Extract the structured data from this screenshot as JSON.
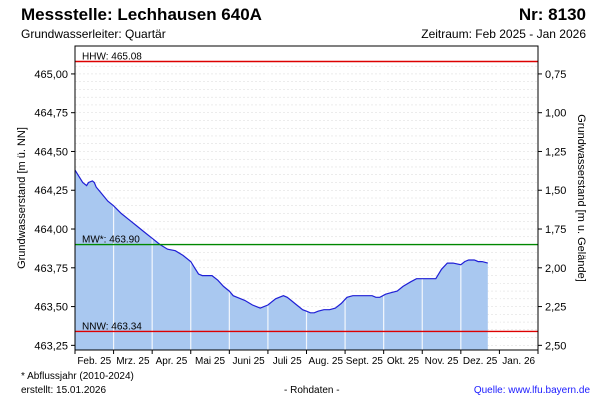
{
  "header": {
    "title": "Messstelle: Lechhausen 640A",
    "number": "Nr: 8130",
    "aquifer": "Grundwasserleiter: Quartär",
    "period": "Zeitraum: Feb 2025 - Jan 2026"
  },
  "footer": {
    "note": "* Abflussjahr (2010-2024)",
    "created": "erstellt:  15.01.2026",
    "raw": "- Rohdaten -",
    "source": "Quelle:  www.lfu.bayern.de"
  },
  "colors": {
    "fill": "#a9c8f0",
    "line": "#1f1fd6",
    "hhw": "#dd0000",
    "nnw": "#dd0000",
    "mw": "#008800",
    "grid": "#d8d8d8"
  },
  "chart_data": {
    "type": "area",
    "ylabel": "Grundwasserstand [m ü. NN]",
    "ylabel_right": "Grundwasserstand [m u. Gelände]",
    "ylim": [
      463.22,
      465.18
    ],
    "y_ticks": [
      465.0,
      464.75,
      464.5,
      464.25,
      464.0,
      463.75,
      463.5,
      463.25
    ],
    "y_tick_labels": [
      "465,00",
      "464,75",
      "464,50",
      "464,25",
      "464,00",
      "463,75",
      "463,50",
      "463,25"
    ],
    "right_ticks": [
      0.75,
      1.0,
      1.25,
      1.5,
      1.75,
      2.0,
      2.25,
      2.5
    ],
    "right_tick_labels": [
      "0,75",
      "1,00",
      "1,25",
      "1,50",
      "1,75",
      "2,00",
      "2,25",
      "2,50"
    ],
    "right_reference": 465.75,
    "x_months": [
      "Feb. 25",
      "Mrz. 25",
      "Apr. 25",
      "Mai 25",
      "Juni 25",
      "Juli 25",
      "Aug. 25",
      "Sept. 25",
      "Okt. 25",
      "Nov. 25",
      "Dez. 25",
      "Jan. 26"
    ],
    "x_range_months": [
      0,
      12
    ],
    "reference_lines": [
      {
        "key": "hhw",
        "label": "HHW: 465.08",
        "value": 465.08
      },
      {
        "key": "mw",
        "label": "MW*: 463.90",
        "value": 463.9
      },
      {
        "key": "nnw",
        "label": "NNW: 463.34",
        "value": 463.34
      }
    ],
    "series": [
      {
        "x": [
          0,
          0.1,
          0.2,
          0.3,
          0.35,
          0.45,
          0.5,
          0.55,
          0.65,
          0.75,
          0.85,
          1.0,
          1.2,
          1.4,
          1.6,
          1.8,
          2.0,
          2.2,
          2.4,
          2.6,
          2.8,
          3.0,
          3.1,
          3.2,
          3.3,
          3.4,
          3.55,
          3.7,
          3.85,
          4.0,
          4.1,
          4.2,
          4.4,
          4.6,
          4.8,
          5.0,
          5.2,
          5.4,
          5.5,
          5.6,
          5.7,
          5.8,
          5.9,
          6.0,
          6.1,
          6.2,
          6.3,
          6.45,
          6.6,
          6.75,
          6.9,
          7.05,
          7.2,
          7.35,
          7.5,
          7.6,
          7.7,
          7.8,
          7.9,
          8.05,
          8.2,
          8.35,
          8.5,
          8.7,
          8.85,
          9.0,
          9.1,
          9.2,
          9.35,
          9.5,
          9.65,
          9.8,
          10.0,
          10.1,
          10.2,
          10.35,
          10.45,
          10.55,
          10.7
        ],
        "y": [
          464.38,
          464.34,
          464.3,
          464.28,
          464.3,
          464.31,
          464.3,
          464.27,
          464.24,
          464.21,
          464.18,
          464.15,
          464.1,
          464.06,
          464.02,
          463.98,
          463.94,
          463.9,
          463.87,
          463.86,
          463.83,
          463.79,
          463.75,
          463.71,
          463.7,
          463.7,
          463.7,
          463.67,
          463.63,
          463.6,
          463.57,
          463.56,
          463.54,
          463.51,
          463.49,
          463.51,
          463.55,
          463.57,
          463.56,
          463.54,
          463.52,
          463.5,
          463.48,
          463.47,
          463.46,
          463.46,
          463.47,
          463.48,
          463.48,
          463.49,
          463.52,
          463.56,
          463.57,
          463.57,
          463.57,
          463.57,
          463.57,
          463.56,
          463.56,
          463.58,
          463.59,
          463.6,
          463.63,
          463.66,
          463.68,
          463.68,
          463.68,
          463.68,
          463.68,
          463.74,
          463.78,
          463.78,
          463.77,
          463.79,
          463.8,
          463.8,
          463.79,
          463.79,
          463.78
        ]
      }
    ]
  }
}
